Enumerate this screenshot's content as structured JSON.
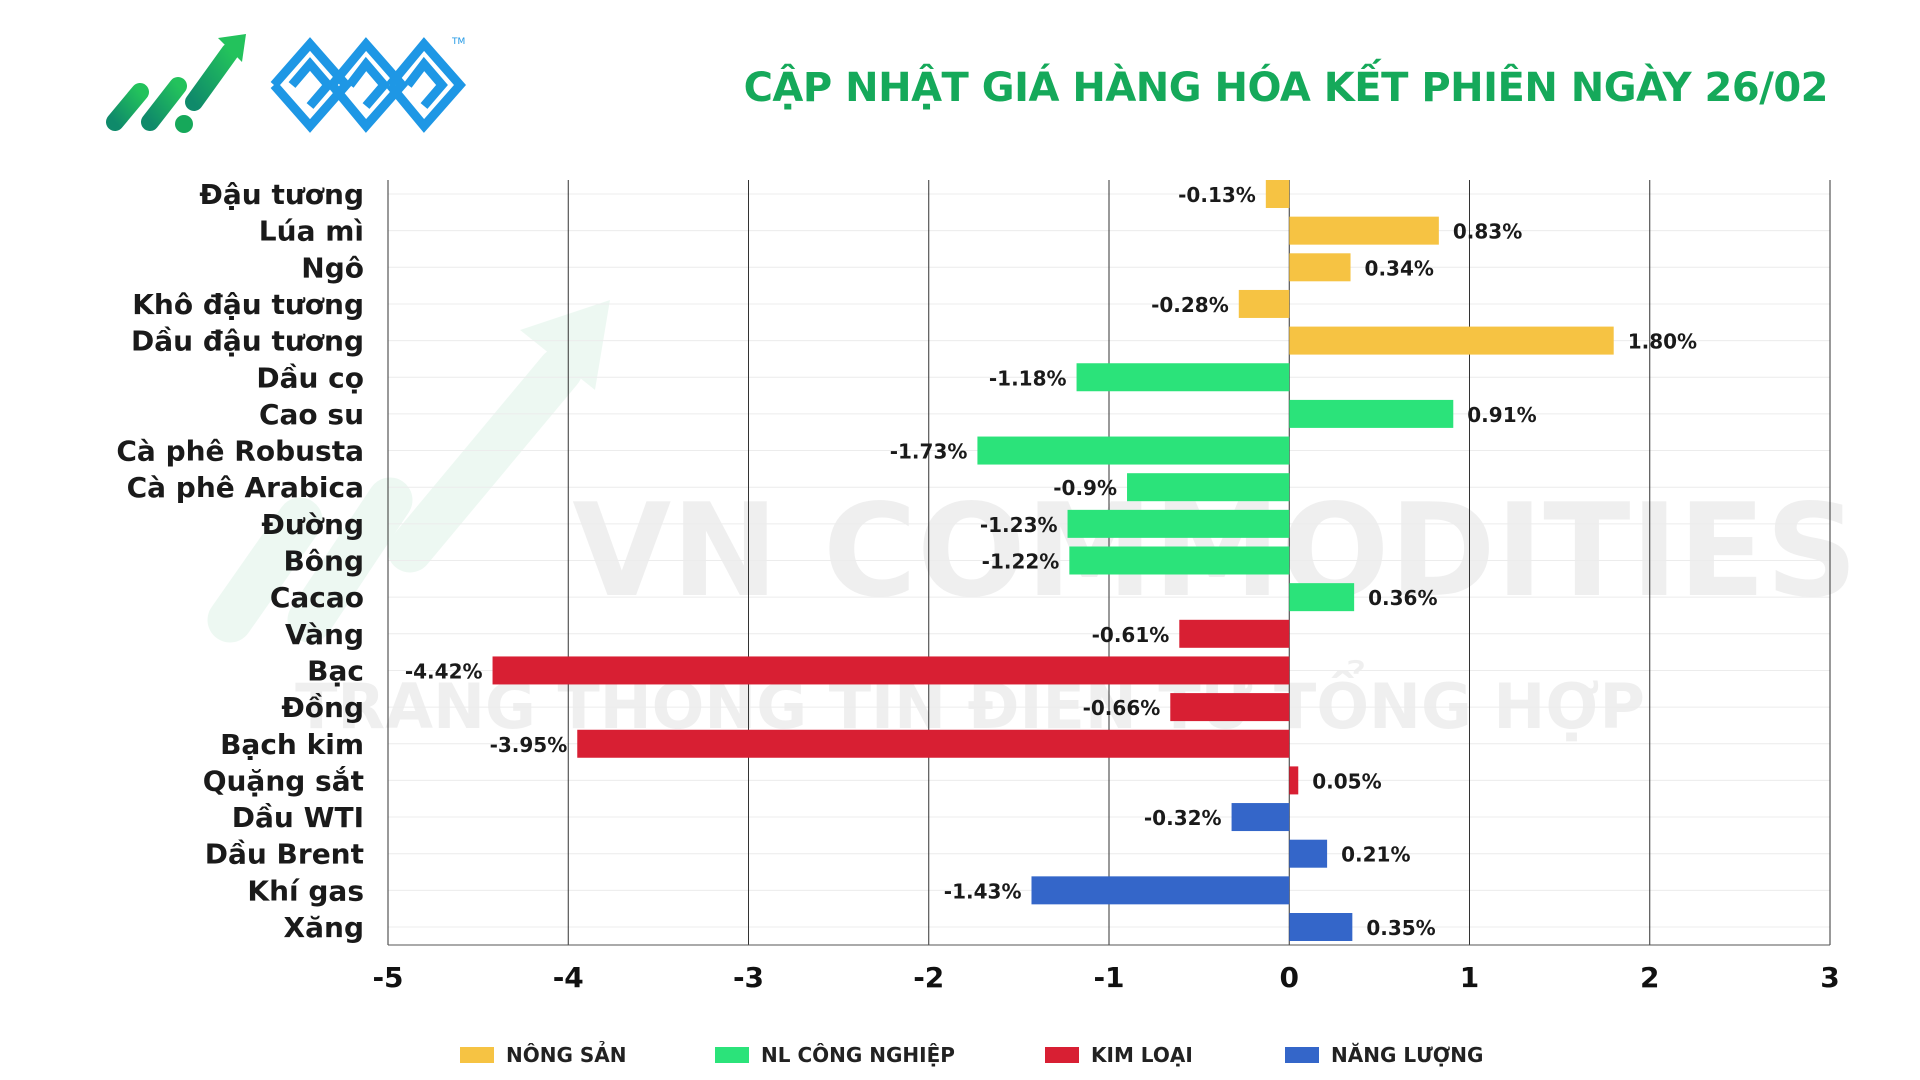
{
  "header": {
    "title": "CẬP NHẬT GIÁ HÀNG HÓA KẾT PHIÊN NGÀY 26/02"
  },
  "watermark": {
    "brand": "VN COMMODITIES",
    "tagline": "TRANG THÔNG TIN ĐIỆN TỬ TỔNG HỢP"
  },
  "colors": {
    "title": "#15a95a",
    "nong_san": "#f6c343",
    "nl_cong_nghiep": "#2be37a",
    "kim_loai": "#d81f33",
    "nang_luong": "#3466c9",
    "logo_green": "#16a85a",
    "logo_blue": "#1e97e5"
  },
  "legend": [
    {
      "label": "NÔNG SẢN",
      "group": "nong_san"
    },
    {
      "label": "NL CÔNG NGHIỆP",
      "group": "nl_cong_nghiep"
    },
    {
      "label": "KIM LOẠI",
      "group": "kim_loai"
    },
    {
      "label": "NĂNG LƯỢNG",
      "group": "nang_luong"
    }
  ],
  "chart_data": {
    "type": "bar",
    "orientation": "horizontal",
    "title": "CẬP NHẬT GIÁ HÀNG HÓA KẾT PHIÊN NGÀY 26/02",
    "xlabel": "",
    "ylabel": "",
    "xlim": [
      -5,
      3
    ],
    "xticks": [
      -5,
      -4,
      -3,
      -2,
      -1,
      0,
      1,
      2,
      3
    ],
    "grid": true,
    "legend_position": "bottom",
    "categories": [
      "Đậu tương",
      "Lúa mì",
      "Ngô",
      "Khô đậu tương",
      "Dầu đậu tương",
      "Dầu cọ",
      "Cao su",
      "Cà phê Robusta",
      "Cà phê Arabica",
      "Đường",
      "Bông",
      "Cacao",
      "Vàng",
      "Bạc",
      "Đồng",
      "Bạch kim",
      "Quặng sắt",
      "Dầu WTI",
      "Dầu Brent",
      "Khí gas",
      "Xăng"
    ],
    "values": [
      -0.13,
      0.83,
      0.34,
      -0.28,
      1.8,
      -1.18,
      0.91,
      -1.73,
      -0.9,
      -1.23,
      -1.22,
      0.36,
      -0.61,
      -4.42,
      -0.66,
      -3.95,
      0.05,
      -0.32,
      0.21,
      -1.43,
      0.35
    ],
    "value_labels": [
      "-0.13%",
      "0.83%",
      "0.34%",
      "-0.28%",
      "1.80%",
      "-1.18%",
      "0.91%",
      "-1.73%",
      "-0.9%",
      "-1.23%",
      "-1.22%",
      "0.36%",
      "-0.61%",
      "-4.42%",
      "-0.66%",
      "-3.95%",
      "0.05%",
      "-0.32%",
      "0.21%",
      "-1.43%",
      "0.35%"
    ],
    "groups": [
      "nong_san",
      "nong_san",
      "nong_san",
      "nong_san",
      "nong_san",
      "nl_cong_nghiep",
      "nl_cong_nghiep",
      "nl_cong_nghiep",
      "nl_cong_nghiep",
      "nl_cong_nghiep",
      "nl_cong_nghiep",
      "nl_cong_nghiep",
      "kim_loai",
      "kim_loai",
      "kim_loai",
      "kim_loai",
      "kim_loai",
      "nang_luong",
      "nang_luong",
      "nang_luong",
      "nang_luong"
    ]
  }
}
